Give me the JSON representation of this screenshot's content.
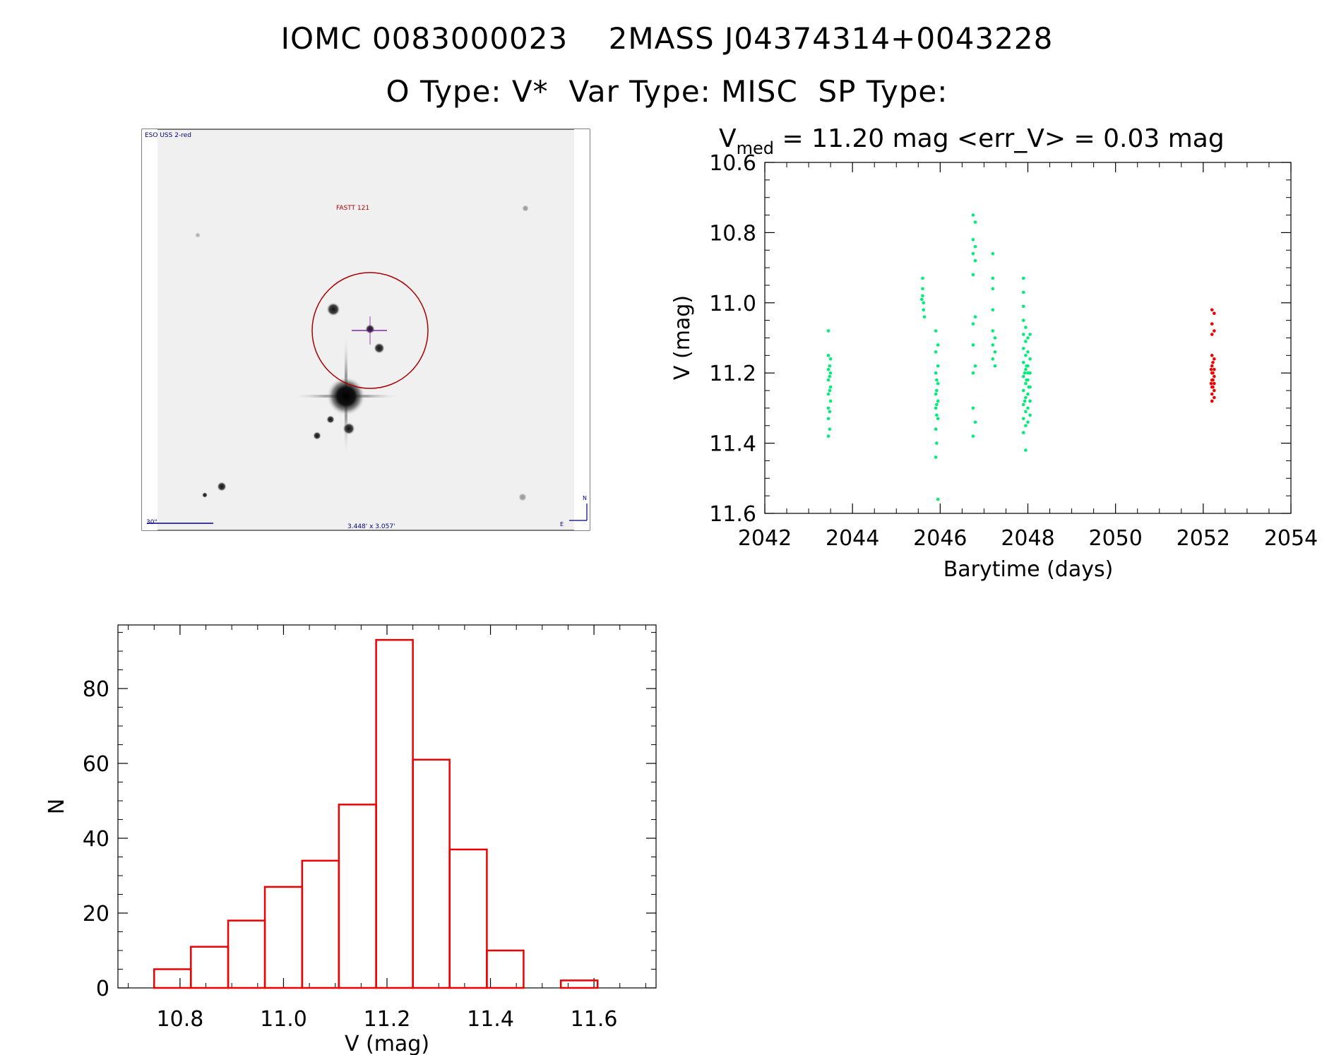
{
  "header": {
    "line1": "IOMC 0083000023    2MASS J04374314+0043228",
    "line2": "O Type: V*  Var Type: MISC  SP Type:"
  },
  "finder": {
    "survey_label": "ESO USS 2-red",
    "target_label": "FASTT 121",
    "scale_label": "30\"",
    "field_label": "3.448' x 3.057'",
    "north_label": "N",
    "east_label": "E"
  },
  "colors": {
    "group_a": "#00ee77",
    "group_b": "#ee0000",
    "histogram": "#ee0000",
    "finder_marks": "#aa0000",
    "finder_text": "#000080",
    "crosshair": "#660099"
  },
  "chart_data": [
    {
      "type": "scatter",
      "title_prefix": "V",
      "title_sub": "med",
      "title_rest": " = 11.20 mag <err_V> = 0.03 mag",
      "xlabel": "Barytime (days)",
      "ylabel": "V (mag)",
      "xlim": [
        2042,
        2054
      ],
      "ylim": [
        11.6,
        10.6
      ],
      "x_ticks": [
        "2042",
        "2044",
        "2046",
        "2048",
        "2050",
        "2052",
        "2054"
      ],
      "y_ticks": [
        "10.6",
        "10.8",
        "11.0",
        "11.2",
        "11.4",
        "11.6"
      ],
      "series": [
        {
          "color": "#00ee77",
          "points": [
            [
              2043.45,
              11.08
            ],
            [
              2043.45,
              11.15
            ],
            [
              2043.45,
              11.19
            ],
            [
              2043.45,
              11.22
            ],
            [
              2043.45,
              11.26
            ],
            [
              2043.45,
              11.3
            ],
            [
              2043.45,
              11.33
            ],
            [
              2043.45,
              11.38
            ],
            [
              2043.5,
              11.16
            ],
            [
              2043.5,
              11.2
            ],
            [
              2043.5,
              11.24
            ],
            [
              2043.5,
              11.28
            ],
            [
              2043.48,
              11.18
            ],
            [
              2043.48,
              11.21
            ],
            [
              2043.48,
              11.25
            ],
            [
              2043.48,
              11.31
            ],
            [
              2043.48,
              11.36
            ],
            [
              2045.6,
              10.93
            ],
            [
              2045.6,
              10.96
            ],
            [
              2045.6,
              10.98
            ],
            [
              2045.62,
              11.0
            ],
            [
              2045.62,
              11.02
            ],
            [
              2045.64,
              11.04
            ],
            [
              2045.58,
              10.99
            ],
            [
              2045.9,
              11.08
            ],
            [
              2045.9,
              11.14
            ],
            [
              2045.9,
              11.2
            ],
            [
              2045.9,
              11.26
            ],
            [
              2045.9,
              11.3
            ],
            [
              2045.9,
              11.36
            ],
            [
              2045.9,
              11.44
            ],
            [
              2045.95,
              11.12
            ],
            [
              2045.95,
              11.18
            ],
            [
              2045.95,
              11.23
            ],
            [
              2045.95,
              11.28
            ],
            [
              2045.95,
              11.33
            ],
            [
              2045.95,
              11.56
            ],
            [
              2045.92,
              11.22
            ],
            [
              2045.92,
              11.25
            ],
            [
              2045.92,
              11.29
            ],
            [
              2045.92,
              11.32
            ],
            [
              2045.92,
              11.4
            ],
            [
              2046.75,
              10.75
            ],
            [
              2046.75,
              10.82
            ],
            [
              2046.75,
              10.86
            ],
            [
              2046.75,
              10.92
            ],
            [
              2046.75,
              11.06
            ],
            [
              2046.75,
              11.12
            ],
            [
              2046.75,
              11.2
            ],
            [
              2046.75,
              11.3
            ],
            [
              2046.75,
              11.38
            ],
            [
              2046.8,
              10.77
            ],
            [
              2046.8,
              10.84
            ],
            [
              2046.8,
              10.88
            ],
            [
              2046.8,
              11.04
            ],
            [
              2046.8,
              11.18
            ],
            [
              2046.8,
              11.34
            ],
            [
              2047.2,
              10.86
            ],
            [
              2047.2,
              10.93
            ],
            [
              2047.2,
              10.96
            ],
            [
              2047.2,
              11.02
            ],
            [
              2047.2,
              11.08
            ],
            [
              2047.2,
              11.12
            ],
            [
              2047.2,
              11.16
            ],
            [
              2047.25,
              11.1
            ],
            [
              2047.25,
              11.14
            ],
            [
              2047.25,
              11.18
            ],
            [
              2047.9,
              10.93
            ],
            [
              2047.9,
              10.97
            ],
            [
              2047.9,
              11.01
            ],
            [
              2047.9,
              11.05
            ],
            [
              2047.9,
              11.09
            ],
            [
              2047.9,
              11.13
            ],
            [
              2047.9,
              11.17
            ],
            [
              2047.9,
              11.21
            ],
            [
              2047.9,
              11.25
            ],
            [
              2047.9,
              11.29
            ],
            [
              2047.9,
              11.33
            ],
            [
              2047.9,
              11.37
            ],
            [
              2047.95,
              11.07
            ],
            [
              2047.95,
              11.11
            ],
            [
              2047.95,
              11.15
            ],
            [
              2047.95,
              11.19
            ],
            [
              2047.95,
              11.23
            ],
            [
              2047.95,
              11.27
            ],
            [
              2047.95,
              11.31
            ],
            [
              2047.95,
              11.35
            ],
            [
              2047.95,
              11.42
            ],
            [
              2048.0,
              11.1
            ],
            [
              2048.0,
              11.14
            ],
            [
              2048.0,
              11.18
            ],
            [
              2048.0,
              11.2
            ],
            [
              2048.0,
              11.22
            ],
            [
              2048.0,
              11.26
            ],
            [
              2048.0,
              11.3
            ],
            [
              2048.0,
              11.34
            ],
            [
              2048.05,
              11.09
            ],
            [
              2048.05,
              11.16
            ],
            [
              2048.05,
              11.2
            ],
            [
              2048.05,
              11.24
            ],
            [
              2048.05,
              11.28
            ],
            [
              2048.05,
              11.32
            ],
            [
              2047.93,
              11.2
            ],
            [
              2047.97,
              11.22
            ],
            [
              2048.02,
              11.24
            ],
            [
              2047.93,
              11.28
            ],
            [
              2047.97,
              11.18
            ]
          ]
        },
        {
          "color": "#ee0000",
          "points": [
            [
              2052.2,
              11.02
            ],
            [
              2052.2,
              11.06
            ],
            [
              2052.2,
              11.09
            ],
            [
              2052.2,
              11.15
            ],
            [
              2052.2,
              11.18
            ],
            [
              2052.2,
              11.2
            ],
            [
              2052.2,
              11.22
            ],
            [
              2052.2,
              11.24
            ],
            [
              2052.2,
              11.26
            ],
            [
              2052.2,
              11.28
            ],
            [
              2052.25,
              11.03
            ],
            [
              2052.25,
              11.08
            ],
            [
              2052.25,
              11.16
            ],
            [
              2052.25,
              11.19
            ],
            [
              2052.25,
              11.21
            ],
            [
              2052.25,
              11.23
            ],
            [
              2052.25,
              11.25
            ],
            [
              2052.25,
              11.27
            ],
            [
              2052.22,
              11.17
            ],
            [
              2052.22,
              11.2
            ],
            [
              2052.22,
              11.22
            ],
            [
              2052.22,
              11.24
            ],
            [
              2052.18,
              11.19
            ],
            [
              2052.18,
              11.23
            ]
          ]
        }
      ]
    },
    {
      "type": "bar",
      "xlabel": "V (mag)",
      "ylabel": "N",
      "xlim": [
        10.68,
        11.72
      ],
      "ylim": [
        0,
        97
      ],
      "x_ticks": [
        "10.8",
        "11.0",
        "11.2",
        "11.4",
        "11.6"
      ],
      "y_ticks": [
        "0",
        "20",
        "40",
        "60",
        "80"
      ],
      "bin_edges": [
        10.75,
        10.821,
        10.893,
        10.964,
        11.036,
        11.107,
        11.179,
        11.25,
        11.321,
        11.393,
        11.464,
        11.536,
        11.607
      ],
      "values": [
        5,
        11,
        18,
        27,
        34,
        49,
        93,
        61,
        37,
        10,
        0,
        2
      ]
    }
  ]
}
